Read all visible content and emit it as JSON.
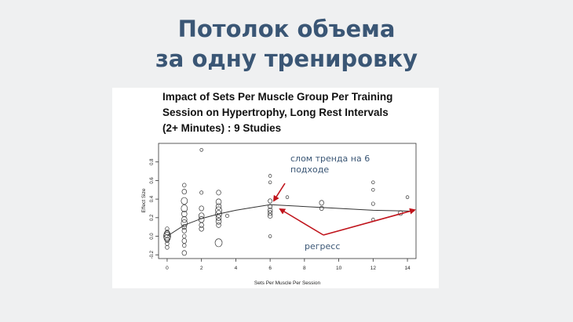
{
  "slide": {
    "title_line1": "Потолок объема",
    "title_line2": "за одну тренировку"
  },
  "colors": {
    "background": "#eff0f1",
    "title": "#3a5675",
    "annotation_text": "#3a5675",
    "annotation_arrow": "#c0141c",
    "plot": "#333333"
  },
  "chart_data": {
    "type": "scatter",
    "title_lines": [
      "Impact of Sets Per Muscle Group Per Training",
      "Session on Hypertrophy, Long Rest Intervals",
      "(2+ Minutes) : 9 Studies"
    ],
    "xlabel": "Sets Per Muscle Per Session",
    "ylabel": "Effect Size",
    "xlim": [
      -0.5,
      14.5
    ],
    "ylim": [
      -0.24,
      1.0
    ],
    "xticks": [
      0,
      2,
      4,
      6,
      8,
      10,
      12,
      14
    ],
    "yticks": [
      -0.2,
      0.0,
      0.2,
      0.4,
      0.6,
      0.8
    ],
    "ytick_labels": [
      "-0.2",
      "0.0",
      "0.2",
      "0.4",
      "0.6",
      "0.8"
    ],
    "grid": false,
    "points": [
      {
        "x": 0,
        "y": 0.0,
        "w": 3
      },
      {
        "x": 0,
        "y": -0.02,
        "w": 2.5
      },
      {
        "x": 0,
        "y": 0.02,
        "w": 2.5
      },
      {
        "x": 0,
        "y": -0.04,
        "w": 1.5
      },
      {
        "x": 0,
        "y": 0.04,
        "w": 1.5
      },
      {
        "x": 0,
        "y": -0.08,
        "w": 1
      },
      {
        "x": 0,
        "y": 0.08,
        "w": 1
      },
      {
        "x": 0,
        "y": -0.12,
        "w": 1
      },
      {
        "x": 1,
        "y": 0.55,
        "w": 1
      },
      {
        "x": 1,
        "y": 0.48,
        "w": 1.5
      },
      {
        "x": 1,
        "y": 0.38,
        "w": 2.5
      },
      {
        "x": 1,
        "y": 0.3,
        "w": 2.5
      },
      {
        "x": 1,
        "y": 0.24,
        "w": 2
      },
      {
        "x": 1,
        "y": 0.18,
        "w": 2
      },
      {
        "x": 1,
        "y": 0.14,
        "w": 2.5
      },
      {
        "x": 1,
        "y": 0.1,
        "w": 1.5
      },
      {
        "x": 1,
        "y": 0.06,
        "w": 1.5
      },
      {
        "x": 1,
        "y": 0.0,
        "w": 1
      },
      {
        "x": 1,
        "y": -0.05,
        "w": 1.5
      },
      {
        "x": 1,
        "y": -0.1,
        "w": 1
      },
      {
        "x": 1,
        "y": -0.18,
        "w": 1.5
      },
      {
        "x": 2,
        "y": 0.93,
        "w": 0.6
      },
      {
        "x": 2,
        "y": 0.47,
        "w": 0.8
      },
      {
        "x": 2,
        "y": 0.3,
        "w": 1.5
      },
      {
        "x": 2,
        "y": 0.22,
        "w": 2
      },
      {
        "x": 2,
        "y": 0.18,
        "w": 2
      },
      {
        "x": 2,
        "y": 0.12,
        "w": 1.5
      },
      {
        "x": 2,
        "y": 0.08,
        "w": 1.5
      },
      {
        "x": 3,
        "y": 0.47,
        "w": 1.5
      },
      {
        "x": 3,
        "y": 0.37,
        "w": 2
      },
      {
        "x": 3,
        "y": 0.32,
        "w": 2
      },
      {
        "x": 3,
        "y": 0.28,
        "w": 2.5
      },
      {
        "x": 3,
        "y": 0.24,
        "w": 2.5
      },
      {
        "x": 3,
        "y": 0.2,
        "w": 2
      },
      {
        "x": 3,
        "y": 0.16,
        "w": 2
      },
      {
        "x": 3,
        "y": 0.12,
        "w": 1.5
      },
      {
        "x": 3,
        "y": -0.07,
        "w": 3
      },
      {
        "x": 3.5,
        "y": 0.22,
        "w": 0.8
      },
      {
        "x": 6,
        "y": 0.65,
        "w": 0.6
      },
      {
        "x": 6,
        "y": 0.58,
        "w": 0.6
      },
      {
        "x": 6,
        "y": 0.38,
        "w": 1.2
      },
      {
        "x": 6,
        "y": 0.32,
        "w": 1.2
      },
      {
        "x": 6,
        "y": 0.28,
        "w": 1.5
      },
      {
        "x": 6,
        "y": 0.25,
        "w": 1.5
      },
      {
        "x": 6,
        "y": 0.22,
        "w": 1.5
      },
      {
        "x": 6,
        "y": 0.0,
        "w": 0.6
      },
      {
        "x": 7,
        "y": 0.42,
        "w": 0.6
      },
      {
        "x": 9,
        "y": 0.36,
        "w": 1.5
      },
      {
        "x": 9,
        "y": 0.3,
        "w": 1.2
      },
      {
        "x": 12,
        "y": 0.58,
        "w": 0.6
      },
      {
        "x": 12,
        "y": 0.5,
        "w": 0.6
      },
      {
        "x": 12,
        "y": 0.35,
        "w": 0.8
      },
      {
        "x": 12,
        "y": 0.18,
        "w": 0.6
      },
      {
        "x": 13.6,
        "y": 0.25,
        "w": 1.5
      },
      {
        "x": 14,
        "y": 0.42,
        "w": 0.6
      }
    ],
    "trend_line": [
      [
        0,
        0.0
      ],
      [
        1,
        0.12
      ],
      [
        2,
        0.19
      ],
      [
        3,
        0.24
      ],
      [
        4,
        0.28
      ],
      [
        5,
        0.31
      ],
      [
        6,
        0.34
      ],
      [
        8,
        0.32
      ],
      [
        10,
        0.3
      ],
      [
        12,
        0.28
      ],
      [
        14.4,
        0.27
      ]
    ],
    "annotations": {
      "break_text_line1": "слом тренда на 6",
      "break_text_line2": "подходе",
      "regress_text": "регресс"
    }
  }
}
